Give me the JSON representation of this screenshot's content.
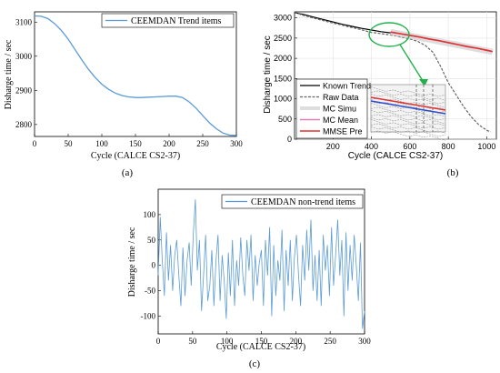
{
  "panels": {
    "a": {
      "label": "(a)"
    },
    "b": {
      "label": "(b)"
    },
    "c": {
      "label": "(c)"
    }
  },
  "chart_data": [
    {
      "id": "a",
      "type": "line",
      "xlabel": "Cycle (CALCE CS2-37)",
      "ylabel": "Disharge time / sec",
      "xlim": [
        0,
        300
      ],
      "ylim": [
        2765,
        3130
      ],
      "xticks": [
        0,
        50,
        100,
        150,
        200,
        250,
        300
      ],
      "yticks": [
        2800,
        2900,
        3000,
        3100
      ],
      "legend": "top-right",
      "grid": false,
      "series": [
        {
          "name": "CEEMDAN Trend items",
          "color": "#5b9bd5",
          "x": [
            0,
            10,
            20,
            30,
            40,
            50,
            60,
            70,
            80,
            90,
            100,
            110,
            120,
            130,
            140,
            150,
            160,
            170,
            180,
            190,
            200,
            210,
            220,
            230,
            240,
            250,
            260,
            270,
            280,
            290,
            300
          ],
          "y": [
            3118,
            3117,
            3110,
            3095,
            3075,
            3050,
            3020,
            2990,
            2962,
            2938,
            2918,
            2903,
            2892,
            2885,
            2881,
            2879,
            2879,
            2880,
            2881,
            2882,
            2883,
            2883,
            2879,
            2866,
            2848,
            2826,
            2805,
            2788,
            2775,
            2769,
            2768
          ]
        }
      ]
    },
    {
      "id": "b",
      "type": "line",
      "xlabel": "Cycle (CALCE CS2-37)",
      "ylabel": "Disharge time / sec",
      "xlim": [
        0,
        1050
      ],
      "ylim": [
        0,
        3150
      ],
      "xticks": [
        200,
        400,
        600,
        800,
        1000
      ],
      "yticks": [
        0,
        500,
        1000,
        1500,
        2000,
        2500,
        3000
      ],
      "legend": "bottom-left",
      "grid": true,
      "series": [
        {
          "name": "Known Trend",
          "color": "#000000",
          "x": [
            0,
            50,
            100,
            150,
            200,
            250,
            300,
            350,
            400,
            450,
            500
          ],
          "y": [
            3130,
            3080,
            3020,
            2960,
            2900,
            2840,
            2790,
            2740,
            2700,
            2660,
            2630
          ]
        },
        {
          "name": "Raw Data",
          "color": "#666666",
          "x": [
            0,
            40,
            80,
            120,
            160,
            200,
            240,
            280,
            320,
            360,
            400,
            440,
            480,
            520,
            560,
            600,
            640,
            680,
            720,
            760,
            800,
            840,
            880,
            920,
            960,
            1000,
            1020
          ],
          "y": [
            3140,
            3070,
            3020,
            2970,
            2920,
            2870,
            2830,
            2780,
            2740,
            2690,
            2640,
            2620,
            2590,
            2560,
            2520,
            2480,
            2420,
            2320,
            2150,
            1800,
            1400,
            1100,
            800,
            550,
            350,
            220,
            180
          ]
        },
        {
          "name": "MC Simu",
          "color": "#c8c8c8",
          "x": [
            500,
            1030
          ],
          "y": [
            2650,
            2160
          ]
        },
        {
          "name": "MC Mean",
          "color": "#e080b0",
          "x": [
            500,
            550,
            600,
            650,
            700,
            750,
            800,
            850,
            900,
            950,
            1000,
            1030
          ],
          "y": [
            2640,
            2600,
            2560,
            2520,
            2470,
            2430,
            2380,
            2330,
            2280,
            2240,
            2190,
            2160
          ]
        },
        {
          "name": "MMSE Pre",
          "color": "#e03030",
          "x": [
            500,
            550,
            600,
            650,
            700,
            750,
            800,
            850,
            900,
            950,
            1000,
            1030
          ],
          "y": [
            2650,
            2610,
            2570,
            2530,
            2480,
            2440,
            2390,
            2340,
            2290,
            2250,
            2200,
            2170
          ]
        }
      ]
    },
    {
      "id": "c",
      "type": "line",
      "xlabel": "Cycle (CALCE CS2-37)",
      "ylabel": "Disharge time / sec",
      "xlim": [
        0,
        300
      ],
      "ylim": [
        -135,
        150
      ],
      "xticks": [
        0,
        50,
        100,
        150,
        200,
        250,
        300
      ],
      "yticks": [
        -100,
        -50,
        0,
        50,
        100
      ],
      "legend": "top-right",
      "grid": false,
      "series": [
        {
          "name": "CEEMDAN non-trend items",
          "color": "#5b9bd5",
          "x": [
            0,
            3,
            6,
            9,
            12,
            15,
            18,
            21,
            24,
            27,
            30,
            33,
            36,
            39,
            42,
            45,
            48,
            51,
            54,
            57,
            60,
            63,
            66,
            69,
            72,
            75,
            78,
            81,
            84,
            87,
            90,
            93,
            96,
            99,
            102,
            105,
            108,
            111,
            114,
            117,
            120,
            123,
            126,
            129,
            132,
            135,
            138,
            141,
            144,
            147,
            150,
            153,
            156,
            159,
            162,
            165,
            168,
            171,
            174,
            177,
            180,
            183,
            186,
            189,
            192,
            195,
            198,
            201,
            204,
            207,
            210,
            213,
            216,
            219,
            222,
            225,
            228,
            231,
            234,
            237,
            240,
            243,
            246,
            249,
            252,
            255,
            258,
            261,
            264,
            267,
            270,
            273,
            276,
            279,
            282,
            285,
            288,
            291,
            294,
            297,
            300
          ],
          "y": [
            -20,
            95,
            10,
            -60,
            65,
            -30,
            40,
            -50,
            20,
            50,
            -20,
            -80,
            35,
            -60,
            10,
            45,
            -40,
            60,
            130,
            -10,
            50,
            -90,
            -20,
            60,
            -70,
            -40,
            30,
            -80,
            10,
            60,
            -70,
            20,
            -30,
            -105,
            25,
            -60,
            50,
            -80,
            10,
            -40,
            55,
            -20,
            -60,
            50,
            -10,
            60,
            -70,
            20,
            -40,
            5,
            30,
            -80,
            50,
            -20,
            75,
            -100,
            40,
            -60,
            10,
            -30,
            70,
            -90,
            30,
            -40,
            50,
            -70,
            15,
            60,
            -20,
            -80,
            40,
            -30,
            70,
            -10,
            90,
            -50,
            20,
            -70,
            30,
            -80,
            60,
            -10,
            40,
            -60,
            75,
            -40,
            20,
            90,
            -20,
            50,
            -100,
            65,
            -50,
            40,
            -30,
            60,
            0,
            -70,
            45,
            -125,
            -90
          ]
        }
      ]
    }
  ]
}
